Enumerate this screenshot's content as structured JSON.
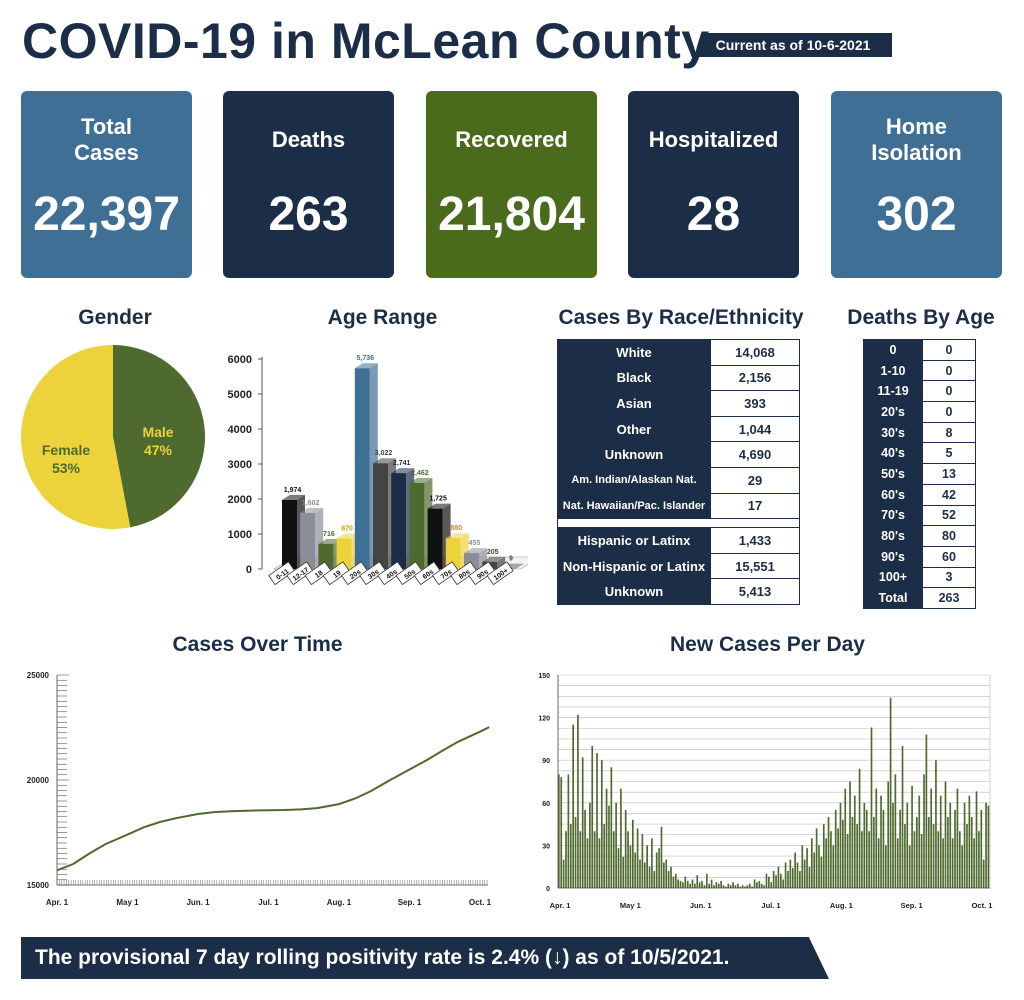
{
  "header": {
    "title": "COVID-19 in McLean County",
    "as_of": "Current as of 10-6-2021"
  },
  "colors": {
    "navy": "#1c2e47",
    "steel": "#3f6f94",
    "green": "#4b6b1c",
    "olive": "#4e6a2e",
    "yellow": "#ecd23b"
  },
  "cards": [
    {
      "label": "Total\nCases",
      "value": "22,397",
      "color": "#3f6f94"
    },
    {
      "label": "Deaths",
      "value": "263",
      "color": "#1c2e47"
    },
    {
      "label": "Recovered",
      "value": "21,804",
      "color": "#4b6b1c"
    },
    {
      "label": "Hospitalized",
      "value": "28",
      "color": "#1c2e47"
    },
    {
      "label": "Home\nIsolation",
      "value": "302",
      "color": "#3f6f94"
    }
  ],
  "sections": {
    "gender": "Gender",
    "age_range": "Age Range",
    "race": "Cases By Race/Ethnicity",
    "deaths_age": "Deaths By Age",
    "cases_over_time": "Cases Over Time",
    "new_cases": "New Cases Per Day"
  },
  "race_table": {
    "group1": [
      {
        "label": "White",
        "value": "14,068"
      },
      {
        "label": "Black",
        "value": "2,156"
      },
      {
        "label": "Asian",
        "value": "393"
      },
      {
        "label": "Other",
        "value": "1,044"
      },
      {
        "label": "Unknown",
        "value": "4,690"
      },
      {
        "label": "Am. Indian/Alaskan Nat.",
        "value": "29"
      },
      {
        "label": "Nat. Hawaiian/Pac. Islander",
        "value": "17"
      }
    ],
    "group2": [
      {
        "label": "Hispanic or Latinx",
        "value": "1,433"
      },
      {
        "label": "Non-Hispanic or Latinx",
        "value": "15,551"
      },
      {
        "label": "Unknown",
        "value": "5,413"
      }
    ]
  },
  "deaths_by_age": [
    {
      "label": "0",
      "value": "0"
    },
    {
      "label": "1-10",
      "value": "0"
    },
    {
      "label": "11-19",
      "value": "0"
    },
    {
      "label": "20's",
      "value": "0"
    },
    {
      "label": "30's",
      "value": "8"
    },
    {
      "label": "40's",
      "value": "5"
    },
    {
      "label": "50's",
      "value": "13"
    },
    {
      "label": "60's",
      "value": "42"
    },
    {
      "label": "70's",
      "value": "52"
    },
    {
      "label": "80's",
      "value": "80"
    },
    {
      "label": "90's",
      "value": "60"
    },
    {
      "label": "100+",
      "value": "3"
    },
    {
      "label": "Total",
      "value": "263"
    }
  ],
  "footer": {
    "text": "The provisional 7 day rolling positivity rate is 2.4% (↓) as of 10/5/2021."
  },
  "chart_data": [
    {
      "type": "pie",
      "title": "Gender",
      "slices": [
        {
          "name": "Male",
          "label": "Male\n47%",
          "value": 47,
          "color": "#4e6a2e",
          "text_color": "#ecd23b"
        },
        {
          "name": "Female",
          "label": "Female\n53%",
          "value": 53,
          "color": "#ecd23b",
          "text_color": "#4e6a2e"
        }
      ]
    },
    {
      "type": "bar",
      "title": "Age Range",
      "ylim": [
        0,
        6000
      ],
      "yticks": [
        0,
        1000,
        2000,
        3000,
        4000,
        5000,
        6000
      ],
      "categories": [
        "0-11",
        "12-17",
        "18",
        "19",
        "20s",
        "30s",
        "40s",
        "50s",
        "60s",
        "70s",
        "80s",
        "90s",
        "100+"
      ],
      "values": [
        1974,
        1602,
        716,
        870,
        5736,
        3022,
        2741,
        2462,
        1725,
        880,
        455,
        205,
        9
      ],
      "value_labels": [
        "1,974",
        "1,602",
        "716",
        "870",
        "5,736",
        "3,022",
        "2,741",
        "2,462",
        "1,725",
        "880",
        "455",
        "205",
        "9"
      ],
      "colors": [
        "#111111",
        "#8b8e99",
        "#4e6a2e",
        "#ecd23b",
        "#3f6f94",
        "#444444",
        "#1c2e47",
        "#4e6a2e",
        "#111111",
        "#ecd23b",
        "#8b8e99",
        "#444444",
        "#666666"
      ],
      "label_colors": [
        "#111111",
        "#8b8e99",
        "#4e6a2e",
        "#c9a400",
        "#3f6f94",
        "#444444",
        "#1c2e47",
        "#4e6a2e",
        "#111111",
        "#e08a1e",
        "#8b8e99",
        "#444444",
        "#444444"
      ]
    },
    {
      "type": "line",
      "title": "Cases Over Time",
      "ylim": [
        15000,
        25000
      ],
      "yticks": [
        15000,
        20000,
        25000
      ],
      "x_tick_labels": [
        "Apr. 1",
        "May 1",
        "Jun. 1",
        "Jul. 1",
        "Aug. 1",
        "Sep. 1",
        "Oct. 1"
      ],
      "color": "#4e6a2e",
      "points": [
        [
          "Apr. 1",
          15700
        ],
        [
          "Apr. 8",
          16000
        ],
        [
          "Apr. 15",
          16500
        ],
        [
          "Apr. 22",
          16950
        ],
        [
          "May 1",
          17400
        ],
        [
          "May 8",
          17750
        ],
        [
          "May 15",
          18000
        ],
        [
          "May 22",
          18180
        ],
        [
          "Jun. 1",
          18380
        ],
        [
          "Jun. 8",
          18470
        ],
        [
          "Jun. 15",
          18510
        ],
        [
          "Jun. 22",
          18540
        ],
        [
          "Jul. 1",
          18560
        ],
        [
          "Jul. 8",
          18570
        ],
        [
          "Jul. 15",
          18600
        ],
        [
          "Jul. 22",
          18660
        ],
        [
          "Aug. 1",
          18850
        ],
        [
          "Aug. 8",
          19120
        ],
        [
          "Aug. 15",
          19480
        ],
        [
          "Aug. 22",
          19930
        ],
        [
          "Sep. 1",
          20500
        ],
        [
          "Sep. 8",
          20920
        ],
        [
          "Sep. 15",
          21380
        ],
        [
          "Sep. 22",
          21820
        ],
        [
          "Oct. 1",
          22300
        ],
        [
          "Oct. 5",
          22520
        ]
      ]
    },
    {
      "type": "bar",
      "title": "New Cases Per Day",
      "ylim": [
        0,
        150
      ],
      "yticks": [
        0,
        30,
        60,
        90,
        120,
        150
      ],
      "x_tick_labels": [
        "Apr. 1",
        "May 1",
        "Jun. 1",
        "Jul. 1",
        "Aug. 1",
        "Sep. 1",
        "Oct. 1"
      ],
      "color": "#4e6a2e",
      "values": [
        80,
        78,
        20,
        40,
        80,
        45,
        115,
        50,
        122,
        40,
        92,
        55,
        35,
        60,
        100,
        40,
        95,
        35,
        90,
        45,
        70,
        58,
        85,
        40,
        60,
        28,
        70,
        22,
        55,
        40,
        30,
        48,
        25,
        42,
        20,
        38,
        18,
        30,
        15,
        35,
        12,
        25,
        28,
        43,
        18,
        20,
        12,
        15,
        8,
        10,
        6,
        5,
        4,
        8,
        5,
        3,
        6,
        3,
        9,
        4,
        5,
        2,
        10,
        3,
        6,
        2,
        4,
        3,
        5,
        2,
        1,
        3,
        2,
        4,
        2,
        3,
        1,
        2,
        1,
        2,
        3,
        1,
        6,
        4,
        5,
        3,
        2,
        10,
        8,
        4,
        12,
        9,
        15,
        10,
        6,
        18,
        12,
        20,
        14,
        25,
        18,
        12,
        30,
        20,
        28,
        15,
        35,
        25,
        42,
        30,
        22,
        45,
        35,
        50,
        40,
        30,
        55,
        42,
        60,
        48,
        70,
        38,
        75,
        50,
        65,
        45,
        84,
        40,
        60,
        55,
        40,
        113,
        50,
        70,
        35,
        65,
        55,
        30,
        75,
        134,
        60,
        80,
        35,
        55,
        100,
        45,
        60,
        30,
        72,
        40,
        50,
        65,
        38,
        80,
        108,
        50,
        70,
        45,
        90,
        40,
        65,
        35,
        75,
        50,
        60,
        35,
        55,
        70,
        40,
        30,
        60,
        45,
        65,
        50,
        35,
        68,
        40,
        55,
        20,
        60,
        58
      ]
    }
  ]
}
